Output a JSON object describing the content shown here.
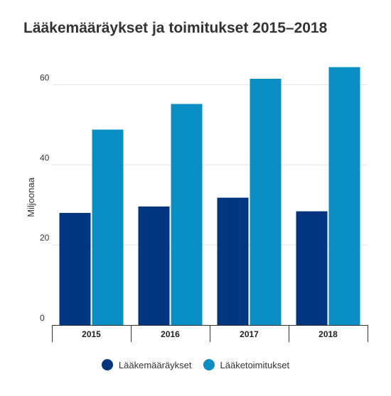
{
  "chart_data": {
    "type": "bar",
    "title": "Lääkemääräykset ja toimitukset 2015–2018",
    "ylabel": "Miljoonaa",
    "xlabel": "",
    "categories": [
      "2015",
      "2016",
      "2017",
      "2018"
    ],
    "series": [
      {
        "name": "Lääkemääräykset",
        "color": "#003580",
        "values": [
          28,
          29.6,
          31.8,
          28.4
        ]
      },
      {
        "name": "Lääketoimitukset",
        "color": "#0a8fc4",
        "values": [
          48.8,
          55.2,
          61.5,
          64.4
        ]
      }
    ],
    "ylim": [
      0,
      70
    ],
    "yticks": [
      0,
      20,
      40,
      60
    ],
    "grid": true,
    "legend": "bottom-center"
  }
}
